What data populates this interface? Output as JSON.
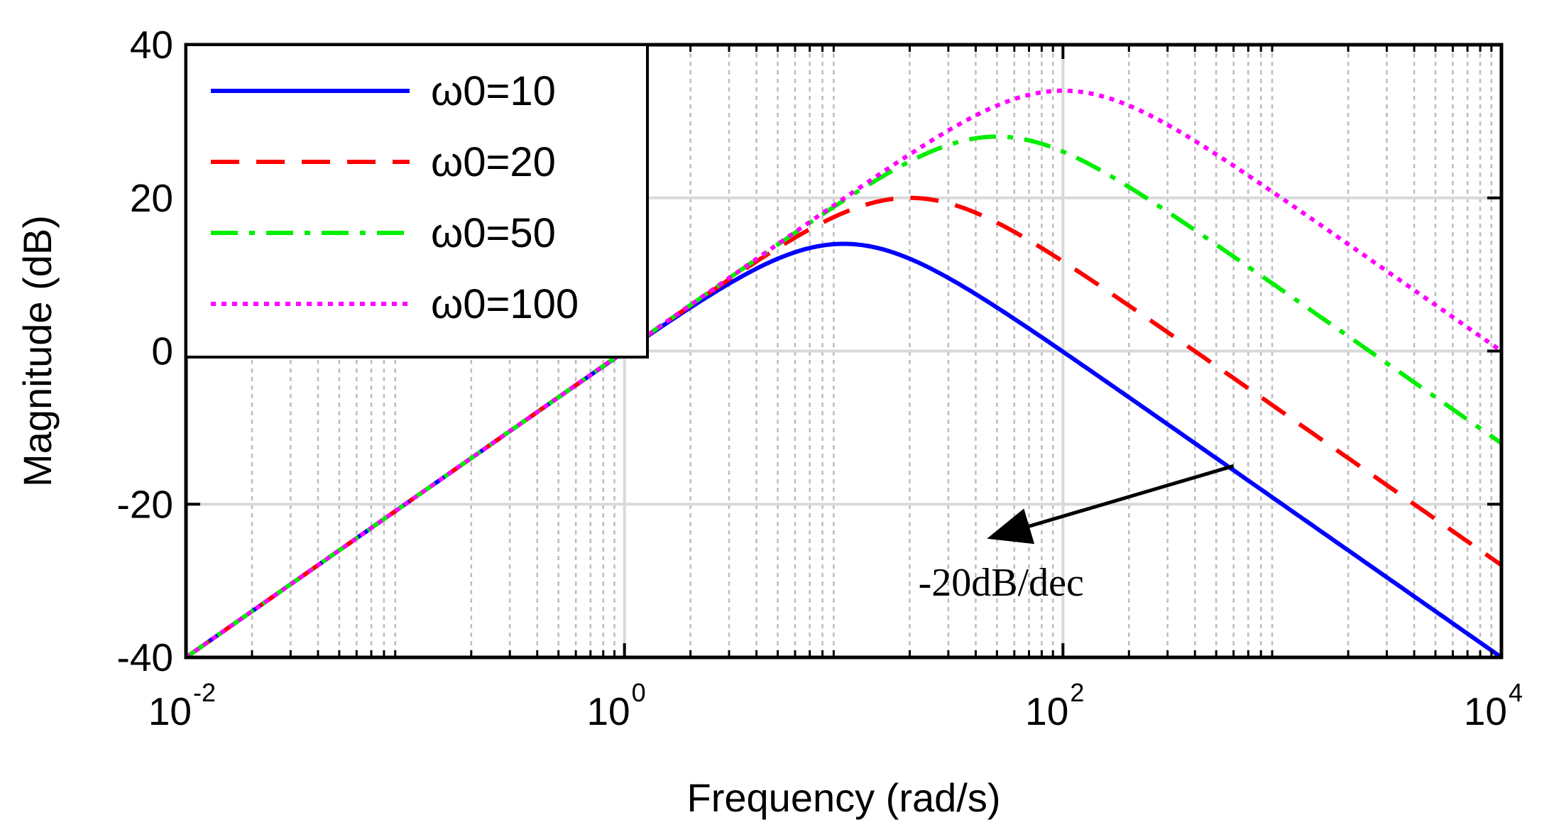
{
  "chart_data": {
    "type": "line",
    "xscale": "log",
    "xlabel": "Frequency (rad/s)",
    "ylabel": "Magnitude (dB)",
    "xlim": [
      0.01,
      10000
    ],
    "ylim": [
      -40,
      40
    ],
    "grid": true,
    "legend_position": "top-left",
    "x_ticks": [
      {
        "value": 0.01,
        "base": "10",
        "exp": "-2"
      },
      {
        "value": 1,
        "base": "10",
        "exp": "0"
      },
      {
        "value": 100,
        "base": "10",
        "exp": "2"
      },
      {
        "value": 10000,
        "base": "10",
        "exp": "4"
      }
    ],
    "y_ticks": [
      {
        "value": 40,
        "label": "40"
      },
      {
        "value": 20,
        "label": "20"
      },
      {
        "value": 0,
        "label": "0"
      },
      {
        "value": -20,
        "label": "-20"
      },
      {
        "value": -40,
        "label": "-40"
      }
    ],
    "series": [
      {
        "name": "ω0=10",
        "omega0": 10,
        "peak_db": 14.0,
        "color": "#0000ff",
        "style": "solid"
      },
      {
        "name": "ω0=20",
        "omega0": 20,
        "peak_db": 20.0,
        "color": "#ff0000",
        "style": "dashed"
      },
      {
        "name": "ω0=50",
        "omega0": 50,
        "peak_db": 28.0,
        "color": "#00ee00",
        "style": "dashdot"
      },
      {
        "name": "ω0=100",
        "omega0": 100,
        "peak_db": 34.0,
        "color": "#ff00ff",
        "style": "dotted"
      }
    ],
    "annotation": {
      "text": "-20dB/dec",
      "arrow_from": {
        "x": 600,
        "y": -15
      },
      "arrow_to": {
        "x": 45,
        "y": -24.5
      }
    }
  }
}
